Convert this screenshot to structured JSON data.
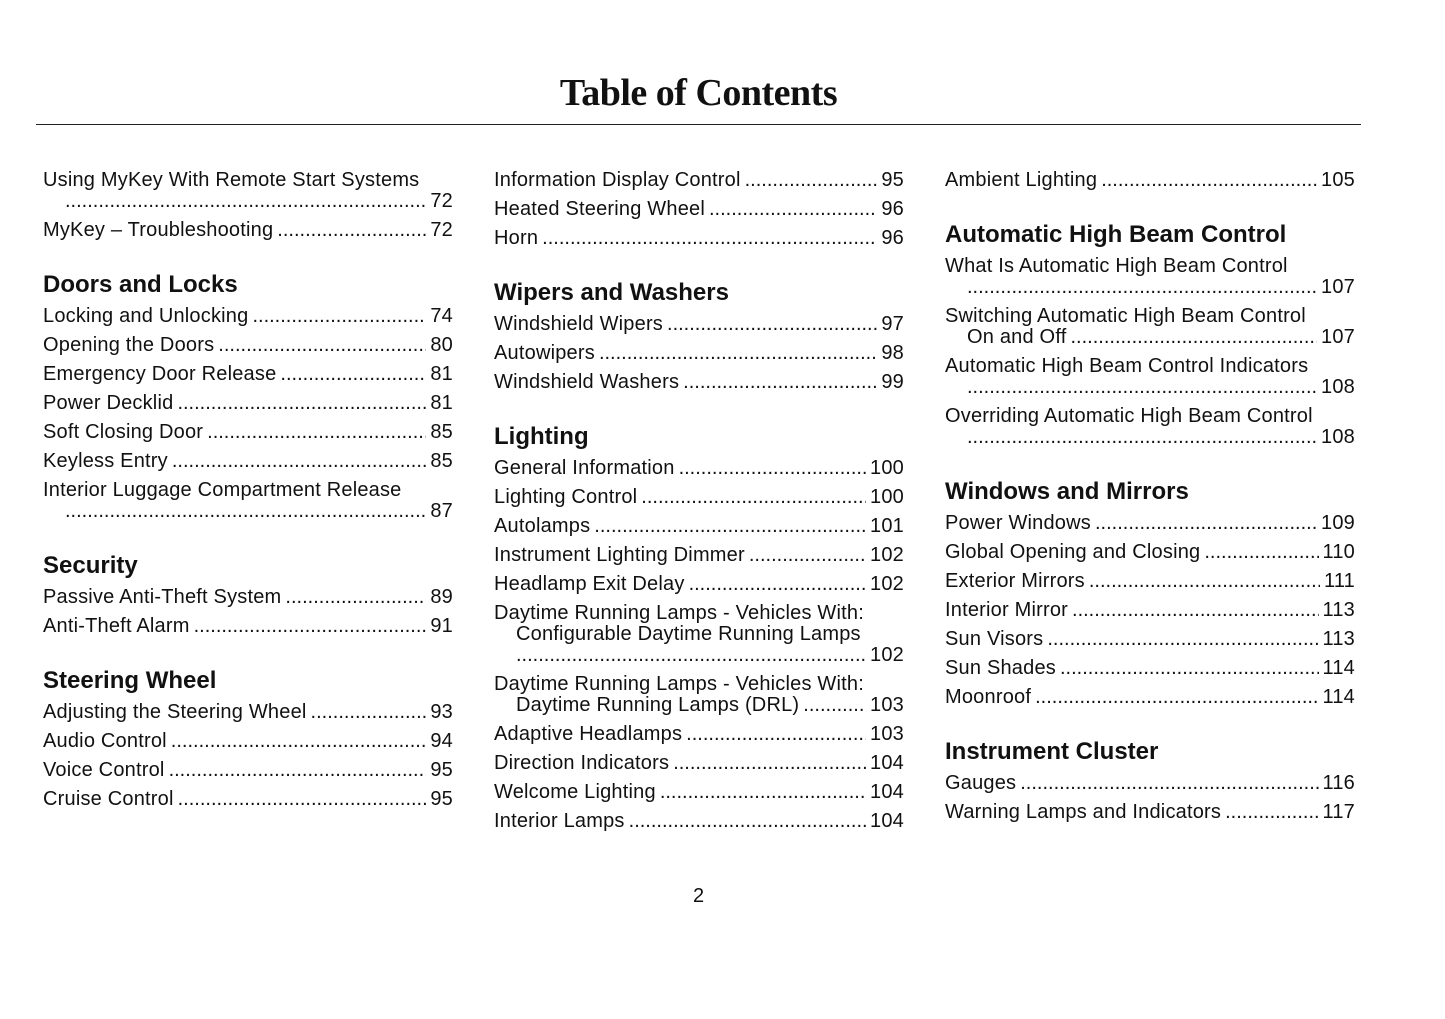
{
  "title": "Table of Contents",
  "page_number": "2",
  "columns": [
    [
      {
        "type": "entry",
        "lines": [
          "Using MyKey With Remote Start Systems"
        ],
        "last": "",
        "page": "72"
      },
      {
        "type": "entry",
        "lines": [],
        "last": "MyKey – Troubleshooting",
        "page": "72"
      },
      {
        "type": "heading",
        "text": "Doors and Locks"
      },
      {
        "type": "entry",
        "lines": [],
        "last": "Locking and Unlocking",
        "page": "74"
      },
      {
        "type": "entry",
        "lines": [],
        "last": "Opening the Doors",
        "page": "80"
      },
      {
        "type": "entry",
        "lines": [],
        "last": "Emergency Door Release",
        "page": "81"
      },
      {
        "type": "entry",
        "lines": [],
        "last": "Power Decklid",
        "page": "81"
      },
      {
        "type": "entry",
        "lines": [],
        "last": "Soft Closing Door",
        "page": "85"
      },
      {
        "type": "entry",
        "lines": [],
        "last": "Keyless Entry",
        "page": "85"
      },
      {
        "type": "entry",
        "lines": [
          "Interior Luggage Compartment Release"
        ],
        "last": "",
        "page": "87"
      },
      {
        "type": "heading",
        "text": "Security"
      },
      {
        "type": "entry",
        "lines": [],
        "last": "Passive Anti-Theft System",
        "page": "89"
      },
      {
        "type": "entry",
        "lines": [],
        "last": "Anti-Theft Alarm",
        "page": "91"
      },
      {
        "type": "heading",
        "text": "Steering Wheel"
      },
      {
        "type": "entry",
        "lines": [],
        "last": "Adjusting the Steering Wheel",
        "page": "93"
      },
      {
        "type": "entry",
        "lines": [],
        "last": "Audio Control",
        "page": "94"
      },
      {
        "type": "entry",
        "lines": [],
        "last": "Voice Control",
        "page": "95"
      },
      {
        "type": "entry",
        "lines": [],
        "last": "Cruise Control",
        "page": "95"
      }
    ],
    [
      {
        "type": "entry",
        "lines": [],
        "last": "Information Display Control",
        "page": "95"
      },
      {
        "type": "entry",
        "lines": [],
        "last": "Heated Steering Wheel",
        "page": "96"
      },
      {
        "type": "entry",
        "lines": [],
        "last": "Horn",
        "page": "96"
      },
      {
        "type": "heading",
        "text": "Wipers and Washers"
      },
      {
        "type": "entry",
        "lines": [],
        "last": "Windshield Wipers",
        "page": "97"
      },
      {
        "type": "entry",
        "lines": [],
        "last": "Autowipers",
        "page": "98"
      },
      {
        "type": "entry",
        "lines": [],
        "last": "Windshield Washers",
        "page": "99"
      },
      {
        "type": "heading",
        "text": "Lighting"
      },
      {
        "type": "entry",
        "lines": [],
        "last": "General Information",
        "page": "100"
      },
      {
        "type": "entry",
        "lines": [],
        "last": "Lighting Control",
        "page": "100"
      },
      {
        "type": "entry",
        "lines": [],
        "last": "Autolamps",
        "page": "101"
      },
      {
        "type": "entry",
        "lines": [],
        "last": "Instrument Lighting Dimmer",
        "page": "102"
      },
      {
        "type": "entry",
        "lines": [],
        "last": "Headlamp Exit Delay",
        "page": "102"
      },
      {
        "type": "entry",
        "lines": [
          "Daytime Running Lamps - Vehicles With:",
          "Configurable Daytime Running Lamps"
        ],
        "last": "",
        "page": "102"
      },
      {
        "type": "entry",
        "lines": [
          "Daytime Running Lamps - Vehicles With:"
        ],
        "last": "Daytime Running Lamps (DRL)",
        "page": "103"
      },
      {
        "type": "entry",
        "lines": [],
        "last": "Adaptive Headlamps",
        "page": "103"
      },
      {
        "type": "entry",
        "lines": [],
        "last": "Direction Indicators",
        "page": "104"
      },
      {
        "type": "entry",
        "lines": [],
        "last": "Welcome Lighting",
        "page": "104"
      },
      {
        "type": "entry",
        "lines": [],
        "last": "Interior Lamps",
        "page": "104"
      }
    ],
    [
      {
        "type": "entry",
        "lines": [],
        "last": "Ambient Lighting",
        "page": "105"
      },
      {
        "type": "heading",
        "text": "Automatic High Beam Control"
      },
      {
        "type": "entry",
        "lines": [
          "What Is Automatic High Beam Control"
        ],
        "last": "",
        "page": "107"
      },
      {
        "type": "entry",
        "lines": [
          "Switching Automatic High Beam Control"
        ],
        "last": "On and Off",
        "page": "107"
      },
      {
        "type": "entry",
        "lines": [
          "Automatic High Beam Control Indicators"
        ],
        "last": "",
        "page": "108"
      },
      {
        "type": "entry",
        "lines": [
          "Overriding Automatic High Beam Control"
        ],
        "last": "",
        "page": "108"
      },
      {
        "type": "heading",
        "text": "Windows and Mirrors"
      },
      {
        "type": "entry",
        "lines": [],
        "last": "Power Windows",
        "page": "109"
      },
      {
        "type": "entry",
        "lines": [],
        "last": "Global Opening and Closing",
        "page": "110"
      },
      {
        "type": "entry",
        "lines": [],
        "last": "Exterior Mirrors",
        "page": "111"
      },
      {
        "type": "entry",
        "lines": [],
        "last": "Interior Mirror",
        "page": "113"
      },
      {
        "type": "entry",
        "lines": [],
        "last": "Sun Visors",
        "page": "113"
      },
      {
        "type": "entry",
        "lines": [],
        "last": "Sun Shades",
        "page": "114"
      },
      {
        "type": "entry",
        "lines": [],
        "last": "Moonroof",
        "page": "114"
      },
      {
        "type": "heading",
        "text": "Instrument Cluster"
      },
      {
        "type": "entry",
        "lines": [],
        "last": "Gauges",
        "page": "116"
      },
      {
        "type": "entry",
        "lines": [],
        "last": "Warning Lamps and Indicators",
        "page": "117"
      }
    ]
  ]
}
